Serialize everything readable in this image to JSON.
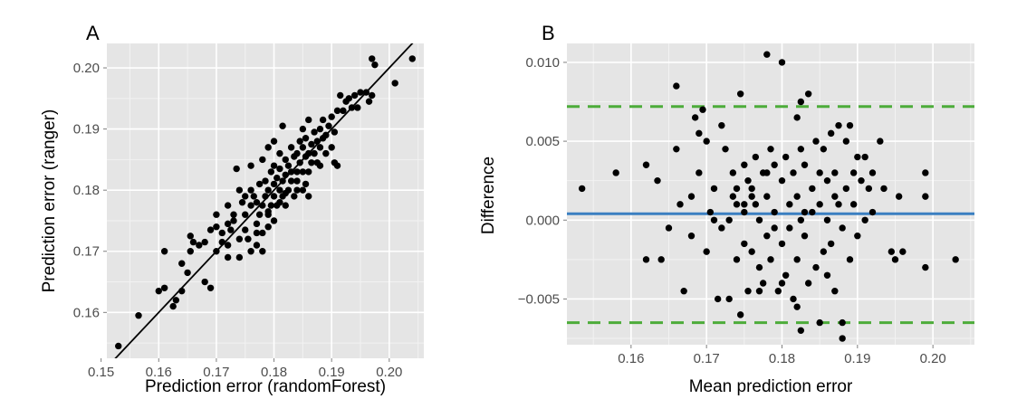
{
  "colors": {
    "panel_bg": "#e5e5e5",
    "grid_major": "#ffffff",
    "grid_minor": "#f2f2f2",
    "point": "#000000",
    "mean_line": "#3a7fc1",
    "limit_line": "#4dac3a",
    "identity_line": "#000000"
  },
  "chart_data": [
    {
      "type": "scatter",
      "panel_label": "A",
      "xlabel": "Prediction error (randomForest)",
      "ylabel": "Prediction error (ranger)",
      "xlim": [
        0.151,
        0.206
      ],
      "ylim": [
        0.1525,
        0.204
      ],
      "xticks": [
        0.15,
        0.16,
        0.17,
        0.18,
        0.19,
        0.2
      ],
      "xtick_labels": [
        "0.15",
        "0.16",
        "0.17",
        "0.18",
        "0.19",
        "0.20"
      ],
      "yticks": [
        0.16,
        0.17,
        0.18,
        0.19,
        0.2
      ],
      "ytick_labels": [
        "0.16",
        "0.17",
        "0.18",
        "0.19",
        "0.20"
      ],
      "grid": true,
      "reference_line": {
        "kind": "identity",
        "slope": 1,
        "intercept": 0
      },
      "points": [
        [
          0.153,
          0.1545
        ],
        [
          0.1565,
          0.1595
        ],
        [
          0.16,
          0.1635
        ],
        [
          0.161,
          0.164
        ],
        [
          0.161,
          0.17
        ],
        [
          0.1625,
          0.161
        ],
        [
          0.163,
          0.162
        ],
        [
          0.164,
          0.1635
        ],
        [
          0.164,
          0.168
        ],
        [
          0.165,
          0.1665
        ],
        [
          0.1655,
          0.17
        ],
        [
          0.1655,
          0.1725
        ],
        [
          0.166,
          0.1715
        ],
        [
          0.167,
          0.171
        ],
        [
          0.168,
          0.165
        ],
        [
          0.168,
          0.1715
        ],
        [
          0.169,
          0.164
        ],
        [
          0.169,
          0.1735
        ],
        [
          0.17,
          0.17
        ],
        [
          0.17,
          0.176
        ],
        [
          0.171,
          0.1715
        ],
        [
          0.171,
          0.173
        ],
        [
          0.172,
          0.171
        ],
        [
          0.172,
          0.1745
        ],
        [
          0.172,
          0.1775
        ],
        [
          0.1725,
          0.1735
        ],
        [
          0.173,
          0.175
        ],
        [
          0.173,
          0.176
        ],
        [
          0.1735,
          0.1835
        ],
        [
          0.174,
          0.169
        ],
        [
          0.174,
          0.172
        ],
        [
          0.1745,
          0.178
        ],
        [
          0.175,
          0.1735
        ],
        [
          0.175,
          0.176
        ],
        [
          0.175,
          0.179
        ],
        [
          0.1755,
          0.172
        ],
        [
          0.176,
          0.17
        ],
        [
          0.176,
          0.1775
        ],
        [
          0.176,
          0.184
        ],
        [
          0.1765,
          0.179
        ],
        [
          0.177,
          0.171
        ],
        [
          0.177,
          0.1745
        ],
        [
          0.177,
          0.178
        ],
        [
          0.1775,
          0.176
        ],
        [
          0.1775,
          0.181
        ],
        [
          0.178,
          0.17
        ],
        [
          0.178,
          0.173
        ],
        [
          0.178,
          0.1775
        ],
        [
          0.178,
          0.185
        ],
        [
          0.1785,
          0.179
        ],
        [
          0.1785,
          0.1815
        ],
        [
          0.179,
          0.174
        ],
        [
          0.179,
          0.1765
        ],
        [
          0.179,
          0.18
        ],
        [
          0.179,
          0.187
        ],
        [
          0.1795,
          0.1775
        ],
        [
          0.1795,
          0.183
        ],
        [
          0.18,
          0.175
        ],
        [
          0.18,
          0.179
        ],
        [
          0.18,
          0.181
        ],
        [
          0.18,
          0.184
        ],
        [
          0.18,
          0.188
        ],
        [
          0.1805,
          0.1775
        ],
        [
          0.1805,
          0.182
        ],
        [
          0.181,
          0.18
        ],
        [
          0.181,
          0.1835
        ],
        [
          0.181,
          0.186
        ],
        [
          0.1815,
          0.179
        ],
        [
          0.1815,
          0.1815
        ],
        [
          0.1815,
          0.1905
        ],
        [
          0.182,
          0.1775
        ],
        [
          0.182,
          0.1825
        ],
        [
          0.182,
          0.185
        ],
        [
          0.1825,
          0.18
        ],
        [
          0.1825,
          0.184
        ],
        [
          0.183,
          0.1815
        ],
        [
          0.183,
          0.183
        ],
        [
          0.183,
          0.187
        ],
        [
          0.1835,
          0.179
        ],
        [
          0.1835,
          0.1855
        ],
        [
          0.184,
          0.18
        ],
        [
          0.184,
          0.183
        ],
        [
          0.184,
          0.186
        ],
        [
          0.1845,
          0.1845
        ],
        [
          0.1845,
          0.188
        ],
        [
          0.185,
          0.18
        ],
        [
          0.185,
          0.183
        ],
        [
          0.185,
          0.187
        ],
        [
          0.185,
          0.19
        ],
        [
          0.1855,
          0.181
        ],
        [
          0.1855,
          0.1855
        ],
        [
          0.1855,
          0.1885
        ],
        [
          0.186,
          0.183
        ],
        [
          0.186,
          0.186
        ],
        [
          0.186,
          0.1915
        ],
        [
          0.1865,
          0.1845
        ],
        [
          0.1865,
          0.1875
        ],
        [
          0.187,
          0.186
        ],
        [
          0.187,
          0.1895
        ],
        [
          0.1875,
          0.1845
        ],
        [
          0.1875,
          0.188
        ],
        [
          0.188,
          0.187
        ],
        [
          0.188,
          0.19
        ],
        [
          0.1885,
          0.1885
        ],
        [
          0.1885,
          0.1915
        ],
        [
          0.189,
          0.186
        ],
        [
          0.189,
          0.189
        ],
        [
          0.1895,
          0.1905
        ],
        [
          0.19,
          0.187
        ],
        [
          0.19,
          0.192
        ],
        [
          0.1905,
          0.1895
        ],
        [
          0.1905,
          0.1845
        ],
        [
          0.191,
          0.184
        ],
        [
          0.191,
          0.193
        ],
        [
          0.1915,
          0.1955
        ],
        [
          0.192,
          0.193
        ],
        [
          0.1925,
          0.1945
        ],
        [
          0.193,
          0.195
        ],
        [
          0.1935,
          0.1935
        ],
        [
          0.194,
          0.1955
        ],
        [
          0.1945,
          0.1935
        ],
        [
          0.195,
          0.196
        ],
        [
          0.196,
          0.196
        ],
        [
          0.1965,
          0.1945
        ],
        [
          0.197,
          0.1955
        ],
        [
          0.197,
          0.2015
        ],
        [
          0.1975,
          0.2005
        ],
        [
          0.201,
          0.1975
        ],
        [
          0.204,
          0.2015
        ],
        [
          0.174,
          0.18
        ],
        [
          0.177,
          0.173
        ],
        [
          0.179,
          0.176
        ],
        [
          0.181,
          0.178
        ],
        [
          0.182,
          0.1795
        ],
        [
          0.184,
          0.1815
        ],
        [
          0.186,
          0.179
        ],
        [
          0.188,
          0.184
        ],
        [
          0.172,
          0.169
        ],
        [
          0.17,
          0.174
        ],
        [
          0.176,
          0.18
        ]
      ]
    },
    {
      "type": "scatter",
      "panel_label": "B",
      "xlabel": "Mean prediction error",
      "ylabel": "Difference",
      "xlim": [
        0.1515,
        0.2055
      ],
      "ylim": [
        -0.0079,
        0.0112
      ],
      "xticks": [
        0.16,
        0.17,
        0.18,
        0.19,
        0.2
      ],
      "xtick_labels": [
        "0.16",
        "0.17",
        "0.18",
        "0.19",
        "0.20"
      ],
      "yticks": [
        -0.005,
        0.0,
        0.005,
        0.01
      ],
      "ytick_labels": [
        "−0.005",
        "0.000",
        "0.005",
        "0.010"
      ],
      "grid": true,
      "mean_difference": 0.0004,
      "limits_of_agreement": [
        -0.0065,
        0.0072
      ],
      "points": [
        [
          0.1535,
          0.002
        ],
        [
          0.158,
          0.003
        ],
        [
          0.162,
          0.0035
        ],
        [
          0.162,
          -0.0025
        ],
        [
          0.1635,
          0.0025
        ],
        [
          0.164,
          -0.0025
        ],
        [
          0.165,
          -0.0005
        ],
        [
          0.166,
          0.0085
        ],
        [
          0.166,
          0.0045
        ],
        [
          0.1665,
          0.001
        ],
        [
          0.167,
          -0.0045
        ],
        [
          0.168,
          0.0015
        ],
        [
          0.168,
          -0.001
        ],
        [
          0.1685,
          0.0065
        ],
        [
          0.169,
          0.0055
        ],
        [
          0.169,
          0.003
        ],
        [
          0.1695,
          0.007
        ],
        [
          0.17,
          0.005
        ],
        [
          0.17,
          -0.002
        ],
        [
          0.1705,
          0.0005
        ],
        [
          0.171,
          0.002
        ],
        [
          0.171,
          0.0
        ],
        [
          0.1715,
          -0.005
        ],
        [
          0.172,
          0.006
        ],
        [
          0.172,
          -0.0005
        ],
        [
          0.1725,
          0.0045
        ],
        [
          0.173,
          0.0
        ],
        [
          0.173,
          -0.005
        ],
        [
          0.1735,
          0.003
        ],
        [
          0.1735,
          0.0015
        ],
        [
          0.174,
          -0.0025
        ],
        [
          0.174,
          0.001
        ],
        [
          0.1745,
          0.008
        ],
        [
          0.1745,
          -0.006
        ],
        [
          0.175,
          0.0035
        ],
        [
          0.175,
          0.0005
        ],
        [
          0.175,
          -0.0015
        ],
        [
          0.1755,
          0.0025
        ],
        [
          0.1755,
          -0.0045
        ],
        [
          0.176,
          0.002
        ],
        [
          0.176,
          -0.002
        ],
        [
          0.1765,
          0.004
        ],
        [
          0.1765,
          0.001
        ],
        [
          0.177,
          -0.003
        ],
        [
          0.177,
          0.0
        ],
        [
          0.1775,
          0.003
        ],
        [
          0.1775,
          -0.004
        ],
        [
          0.178,
          0.0105
        ],
        [
          0.178,
          0.0015
        ],
        [
          0.178,
          -0.001
        ],
        [
          0.1785,
          0.0045
        ],
        [
          0.1785,
          -0.0025
        ],
        [
          0.179,
          0.0035
        ],
        [
          0.179,
          0.0005
        ],
        [
          0.1795,
          -0.0045
        ],
        [
          0.18,
          0.01
        ],
        [
          0.18,
          0.0025
        ],
        [
          0.18,
          -0.0015
        ],
        [
          0.1805,
          0.004
        ],
        [
          0.1805,
          -0.0035
        ],
        [
          0.181,
          0.001
        ],
        [
          0.181,
          -0.0005
        ],
        [
          0.1815,
          0.003
        ],
        [
          0.1815,
          -0.005
        ],
        [
          0.182,
          0.0065
        ],
        [
          0.182,
          0.0015
        ],
        [
          0.182,
          -0.0025
        ],
        [
          0.1825,
          0.0075
        ],
        [
          0.1825,
          0.0
        ],
        [
          0.1825,
          -0.007
        ],
        [
          0.183,
          0.0035
        ],
        [
          0.183,
          -0.001
        ],
        [
          0.1835,
          0.008
        ],
        [
          0.1835,
          -0.004
        ],
        [
          0.184,
          0.002
        ],
        [
          0.184,
          0.0005
        ],
        [
          0.1845,
          0.005
        ],
        [
          0.1845,
          -0.003
        ],
        [
          0.185,
          0.001
        ],
        [
          0.185,
          -0.0065
        ],
        [
          0.1855,
          0.0045
        ],
        [
          0.1855,
          -0.002
        ],
        [
          0.186,
          0.0025
        ],
        [
          0.186,
          0.0
        ],
        [
          0.1865,
          0.0055
        ],
        [
          0.1865,
          -0.0015
        ],
        [
          0.187,
          0.003
        ],
        [
          0.187,
          -0.0045
        ],
        [
          0.1875,
          0.006
        ],
        [
          0.1875,
          0.001
        ],
        [
          0.188,
          -0.0075
        ],
        [
          0.188,
          -0.0005
        ],
        [
          0.1885,
          0.005
        ],
        [
          0.1885,
          0.002
        ],
        [
          0.189,
          0.006
        ],
        [
          0.189,
          -0.0025
        ],
        [
          0.1895,
          0.001
        ],
        [
          0.19,
          0.004
        ],
        [
          0.19,
          -0.001
        ],
        [
          0.1905,
          0.0025
        ],
        [
          0.191,
          0.0
        ],
        [
          0.1915,
          0.002
        ],
        [
          0.192,
          0.003
        ],
        [
          0.192,
          0.0005
        ],
        [
          0.193,
          0.005
        ],
        [
          0.1935,
          0.002
        ],
        [
          0.1945,
          -0.002
        ],
        [
          0.195,
          -0.0025
        ],
        [
          0.1955,
          0.0015
        ],
        [
          0.196,
          -0.002
        ],
        [
          0.199,
          0.0015
        ],
        [
          0.199,
          0.003
        ],
        [
          0.199,
          -0.003
        ],
        [
          0.203,
          -0.0025
        ],
        [
          0.188,
          -0.0065
        ],
        [
          0.1825,
          0.0045
        ],
        [
          0.179,
          -0.0005
        ],
        [
          0.176,
          0.0015
        ],
        [
          0.185,
          0.003
        ],
        [
          0.187,
          0.0015
        ],
        [
          0.174,
          0.002
        ],
        [
          0.18,
          -0.004
        ],
        [
          0.191,
          0.004
        ],
        [
          0.186,
          -0.0035
        ],
        [
          0.178,
          0.003
        ],
        [
          0.183,
          0.0005
        ],
        [
          0.177,
          -0.0045
        ],
        [
          0.1895,
          0.003
        ],
        [
          0.182,
          -0.0055
        ],
        [
          0.175,
          0.001
        ]
      ]
    }
  ]
}
